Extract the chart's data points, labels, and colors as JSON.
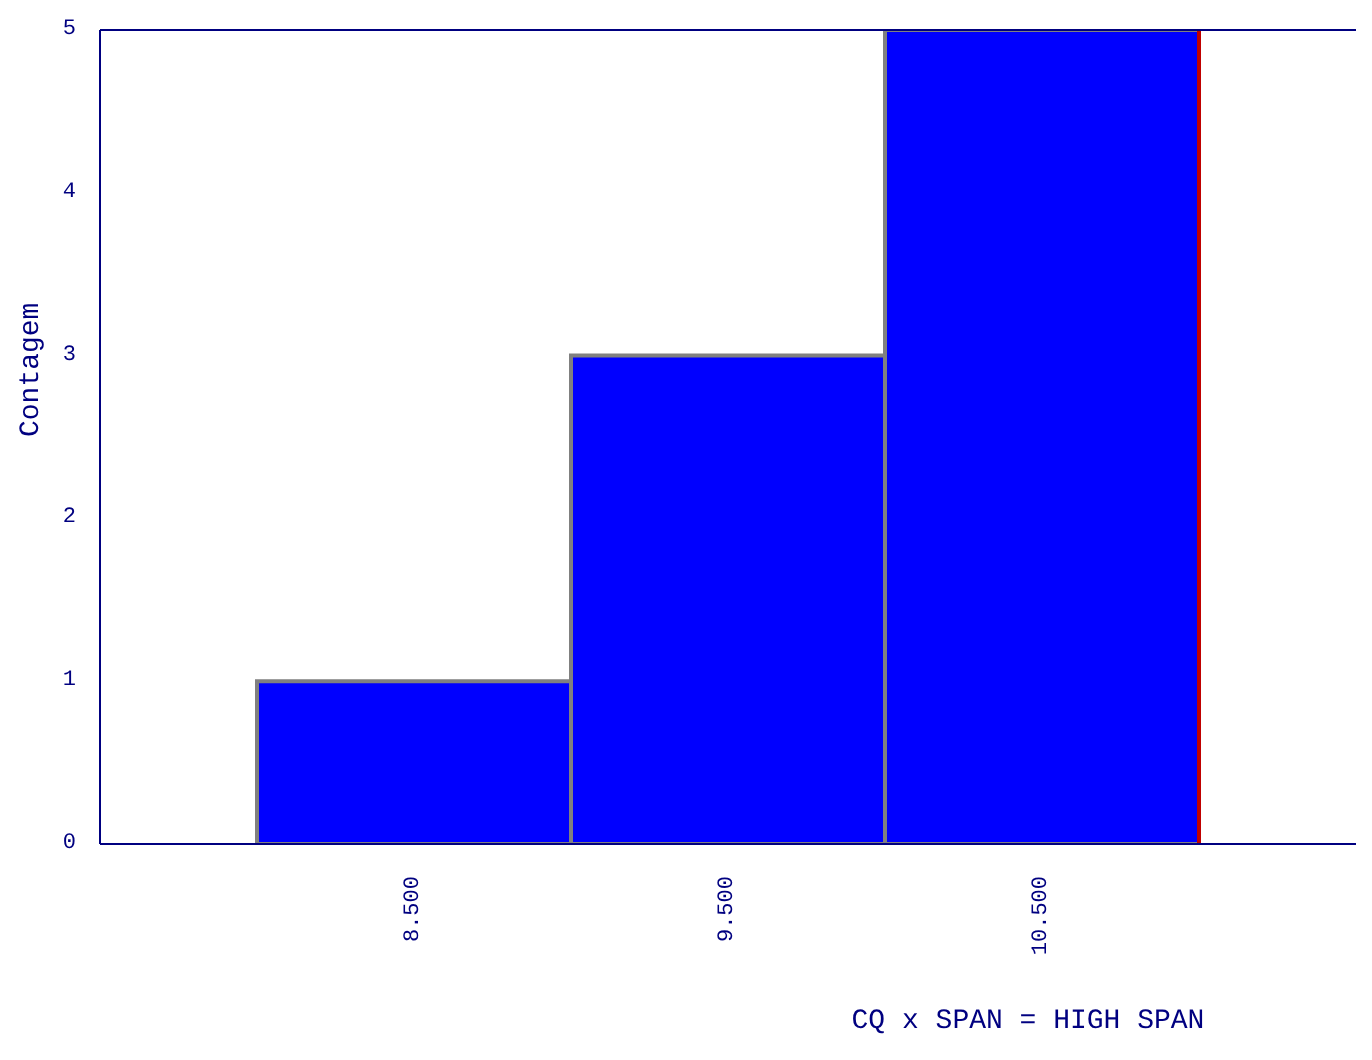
{
  "chart_data": {
    "type": "histogram",
    "xlabel": "CQ x SPAN = HIGH SPAN",
    "ylabel": "Contagem",
    "bins": [
      8,
      9,
      10,
      11
    ],
    "values": [
      1,
      3,
      5
    ],
    "color": "#0000ff",
    "xlim": [
      7.5,
      11.5
    ],
    "xticks": [
      {
        "value": 8.5,
        "label": "8.500"
      },
      {
        "value": 9.5,
        "label": "9.500"
      },
      {
        "value": 10.5,
        "label": "10.500"
      }
    ],
    "ylim": [
      0,
      5
    ],
    "yticks": [
      0,
      1,
      2,
      3,
      4,
      5
    ],
    "ref_lines": [
      {
        "axis": "x",
        "value": 11,
        "color": "#c00000"
      }
    ],
    "grid": false,
    "legend": false
  }
}
